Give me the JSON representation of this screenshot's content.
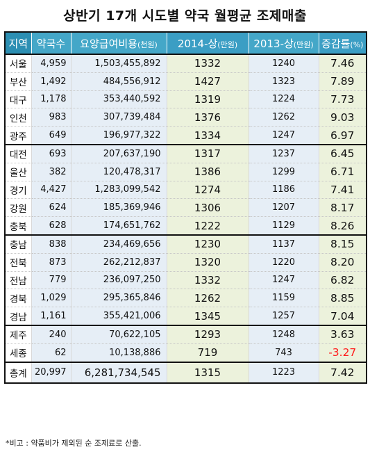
{
  "title": "상반기 17개 시도별 약국 월평균 조제매출",
  "headers": {
    "region": "지역",
    "pharmacies": "약국수",
    "claims_main": "요양급여비용",
    "claims_unit": "(천원)",
    "y2014_main": "2014-상",
    "y2014_unit": "(만원)",
    "y2013_main": "2013-상",
    "y2013_unit": "(만원)",
    "rate_main": "증감률",
    "rate_unit": "(%)"
  },
  "rows": [
    {
      "region": "서울",
      "pharmacies": "4,959",
      "claims": "1,503,455,892",
      "y2014": "1332",
      "y2013": "1240",
      "rate": "7.46"
    },
    {
      "region": "부산",
      "pharmacies": "1,492",
      "claims": "484,556,912",
      "y2014": "1427",
      "y2013": "1323",
      "rate": "7.89"
    },
    {
      "region": "대구",
      "pharmacies": "1,178",
      "claims": "353,440,592",
      "y2014": "1319",
      "y2013": "1224",
      "rate": "7.73"
    },
    {
      "region": "인천",
      "pharmacies": "983",
      "claims": "307,739,484",
      "y2014": "1376",
      "y2013": "1262",
      "rate": "9.03"
    },
    {
      "region": "광주",
      "pharmacies": "649",
      "claims": "196,977,322",
      "y2014": "1334",
      "y2013": "1247",
      "rate": "6.97"
    },
    {
      "region": "대전",
      "pharmacies": "693",
      "claims": "207,637,190",
      "y2014": "1317",
      "y2013": "1237",
      "rate": "6.45"
    },
    {
      "region": "울산",
      "pharmacies": "382",
      "claims": "120,478,317",
      "y2014": "1386",
      "y2013": "1299",
      "rate": "6.71"
    },
    {
      "region": "경기",
      "pharmacies": "4,427",
      "claims": "1,283,099,542",
      "y2014": "1274",
      "y2013": "1186",
      "rate": "7.41"
    },
    {
      "region": "강원",
      "pharmacies": "624",
      "claims": "185,369,946",
      "y2014": "1306",
      "y2013": "1207",
      "rate": "8.17"
    },
    {
      "region": "충북",
      "pharmacies": "628",
      "claims": "174,651,762",
      "y2014": "1222",
      "y2013": "1129",
      "rate": "8.26"
    },
    {
      "region": "충남",
      "pharmacies": "838",
      "claims": "234,469,656",
      "y2014": "1230",
      "y2013": "1137",
      "rate": "8.15"
    },
    {
      "region": "전북",
      "pharmacies": "873",
      "claims": "262,212,837",
      "y2014": "1320",
      "y2013": "1220",
      "rate": "8.20"
    },
    {
      "region": "전남",
      "pharmacies": "779",
      "claims": "236,097,250",
      "y2014": "1332",
      "y2013": "1247",
      "rate": "6.82"
    },
    {
      "region": "경북",
      "pharmacies": "1,029",
      "claims": "295,365,846",
      "y2014": "1262",
      "y2013": "1159",
      "rate": "8.85"
    },
    {
      "region": "경남",
      "pharmacies": "1,161",
      "claims": "355,421,006",
      "y2014": "1345",
      "y2013": "1257",
      "rate": "7.04"
    },
    {
      "region": "제주",
      "pharmacies": "240",
      "claims": "70,622,105",
      "y2014": "1293",
      "y2013": "1248",
      "rate": "3.63"
    },
    {
      "region": "세종",
      "pharmacies": "62",
      "claims": "10,138,886",
      "y2014": "719",
      "y2013": "743",
      "rate": "-3.27"
    }
  ],
  "total": {
    "region": "총계",
    "pharmacies": "20,997",
    "claims": "6,281,734,545",
    "y2014": "1315",
    "y2013": "1223",
    "rate": "7.42"
  },
  "note": "*비고 : 약품비가 제외된 순 조제료로 산출.",
  "colors": {
    "header": "#44a7c8",
    "region_header": "#2c8fb3",
    "col_blue": "#e6eef6",
    "col_green": "#ecf2dc",
    "negative": "#ff1a1a"
  }
}
